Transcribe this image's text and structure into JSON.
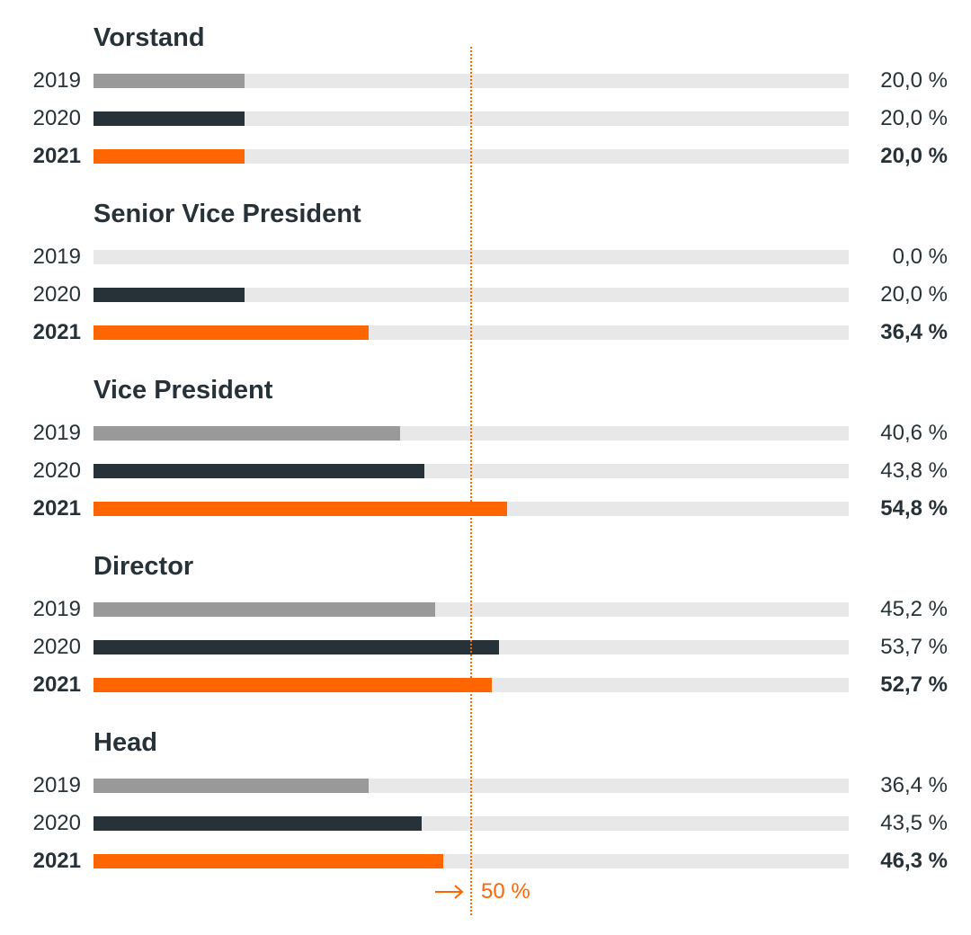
{
  "chart_data": {
    "type": "bar",
    "orientation": "horizontal",
    "xlim": [
      0,
      100
    ],
    "grid": false,
    "reference_line": {
      "value": 50,
      "label": "50 %"
    },
    "colors": {
      "2019": "#999999",
      "2020": "#263238",
      "2021": "#ff6600",
      "track": "#e8e8e8"
    },
    "highlight_year": "2021",
    "groups": [
      {
        "title": "Vorstand",
        "rows": [
          {
            "year": "2019",
            "value": 20.0,
            "label": "20,0 %"
          },
          {
            "year": "2020",
            "value": 20.0,
            "label": "20,0 %"
          },
          {
            "year": "2021",
            "value": 20.0,
            "label": "20,0 %"
          }
        ]
      },
      {
        "title": "Senior Vice President",
        "rows": [
          {
            "year": "2019",
            "value": 0.0,
            "label": "0,0 %"
          },
          {
            "year": "2020",
            "value": 20.0,
            "label": "20,0 %"
          },
          {
            "year": "2021",
            "value": 36.4,
            "label": "36,4 %"
          }
        ]
      },
      {
        "title": "Vice President",
        "rows": [
          {
            "year": "2019",
            "value": 40.6,
            "label": "40,6 %"
          },
          {
            "year": "2020",
            "value": 43.8,
            "label": "43,8 %"
          },
          {
            "year": "2021",
            "value": 54.8,
            "label": "54,8 %"
          }
        ]
      },
      {
        "title": "Director",
        "rows": [
          {
            "year": "2019",
            "value": 45.2,
            "label": "45,2 %"
          },
          {
            "year": "2020",
            "value": 53.7,
            "label": "53,7 %"
          },
          {
            "year": "2021",
            "value": 52.7,
            "label": "52,7 %"
          }
        ]
      },
      {
        "title": "Head",
        "rows": [
          {
            "year": "2019",
            "value": 36.4,
            "label": "36,4 %"
          },
          {
            "year": "2020",
            "value": 43.5,
            "label": "43,5 %"
          },
          {
            "year": "2021",
            "value": 46.3,
            "label": "46,3 %"
          }
        ]
      }
    ]
  }
}
